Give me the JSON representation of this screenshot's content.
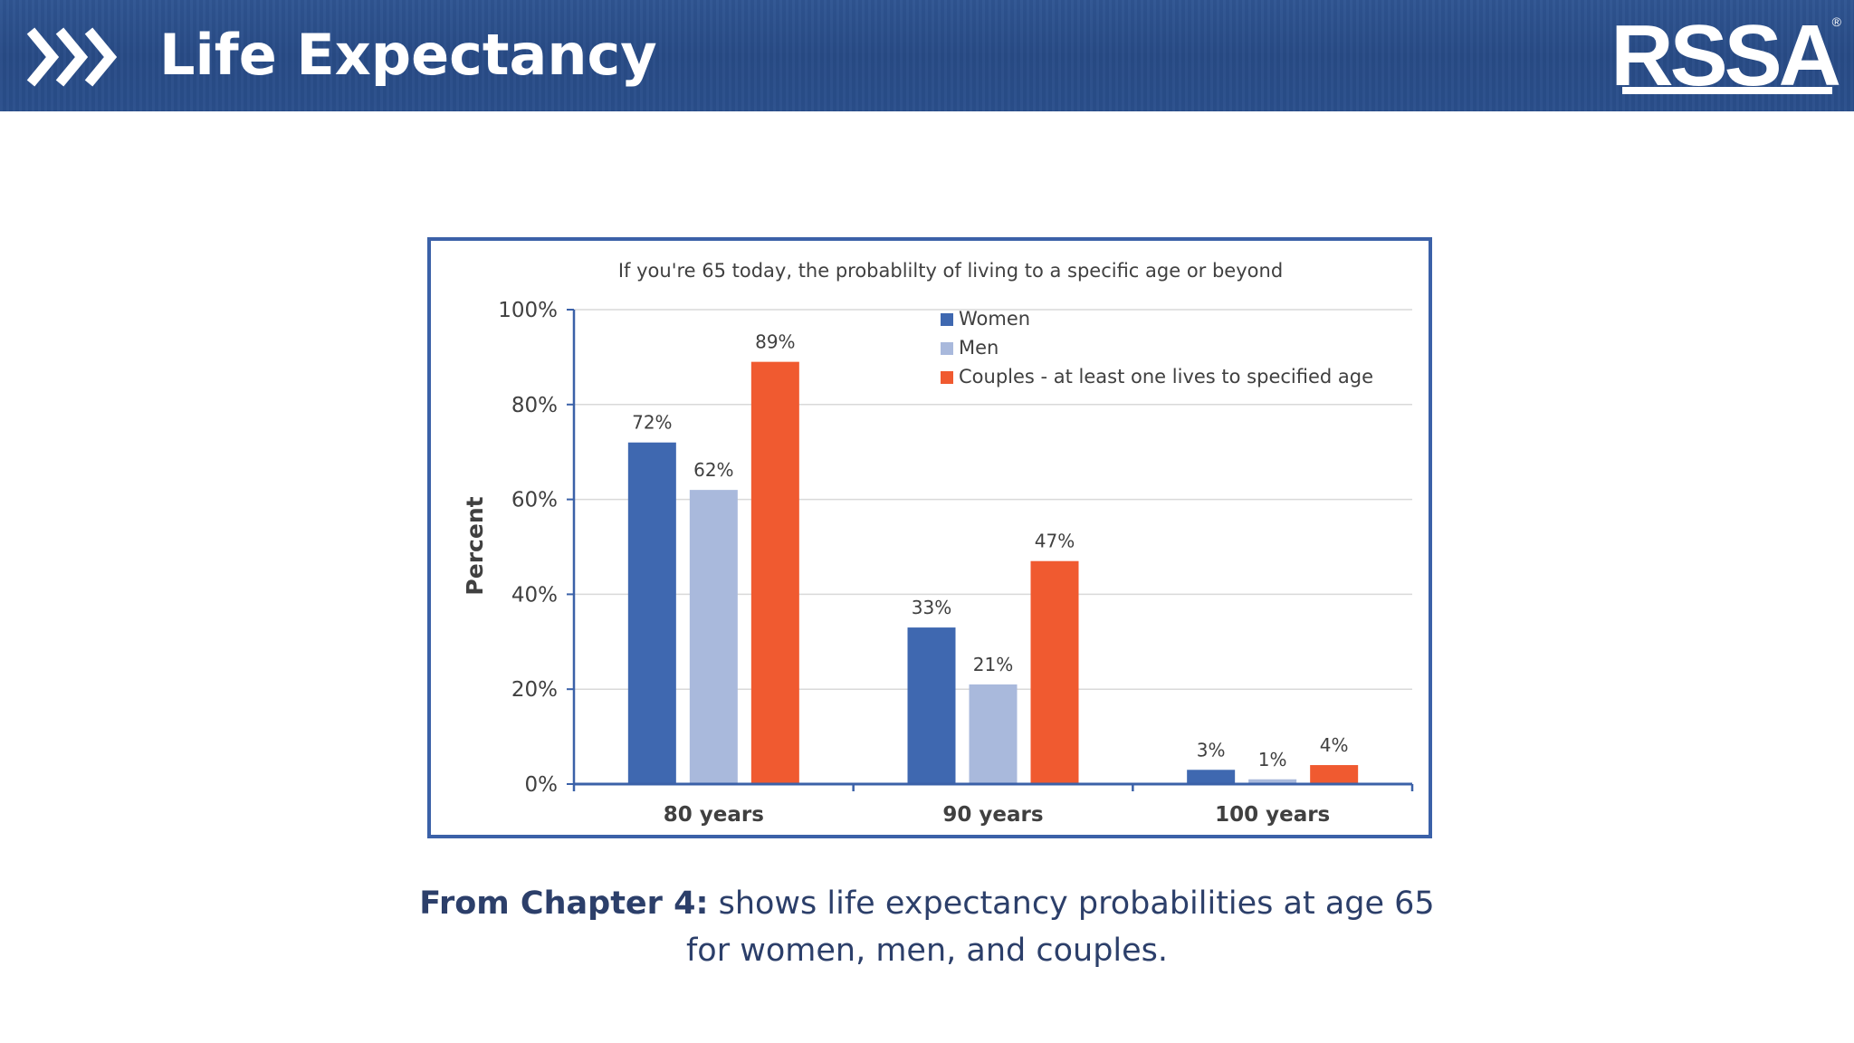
{
  "header": {
    "title": "Life Expectancy",
    "logo_text": "RSSA",
    "logo_mark": "®",
    "chevron_icon": "triple-chevron-right-icon"
  },
  "caption": {
    "bold": "From Chapter 4:",
    "line1_rest": " shows life expectancy probabilities at age 65",
    "line2": "for women, men, and couples."
  },
  "colors": {
    "header_blue": "#2a4f8c",
    "frame_blue": "#3b61a8",
    "women": "#3f68b0",
    "men": "#a9b9dc",
    "couples": "#f05a30"
  },
  "chart_data": {
    "type": "bar",
    "title": "If you're 65 today, the probablilty of living to a specific age or beyond",
    "ylabel": "Percent",
    "xlabel": "",
    "ylim": [
      0,
      100
    ],
    "yticks": [
      0,
      20,
      40,
      60,
      80,
      100
    ],
    "ytick_labels": [
      "0%",
      "20%",
      "40%",
      "60%",
      "80%",
      "100%"
    ],
    "grid": true,
    "legend_position": "top-right",
    "categories": [
      "80 years",
      "90 years",
      "100 years"
    ],
    "series": [
      {
        "name": "Women",
        "color": "#3f68b0",
        "values": [
          72,
          33,
          3
        ],
        "labels": [
          "72%",
          "33%",
          "3%"
        ]
      },
      {
        "name": "Men",
        "color": "#a9b9dc",
        "values": [
          62,
          21,
          1
        ],
        "labels": [
          "62%",
          "21%",
          "1%"
        ]
      },
      {
        "name": "Couples - at least one lives to specified age",
        "color": "#f05a30",
        "values": [
          89,
          47,
          4
        ],
        "labels": [
          "89%",
          "47%",
          "4%"
        ]
      }
    ]
  }
}
